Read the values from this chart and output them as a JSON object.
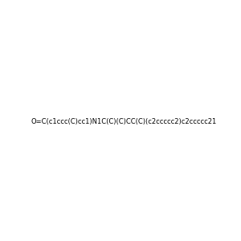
{
  "smiles": "O=C(c1ccc(C)cc1)N1C(C)(C)CC(C)(c2ccccc2)c2ccccc21",
  "background_color": "#e8e8e8",
  "bond_color": "#000000",
  "atom_colors": {
    "N": "#0000ff",
    "O": "#ff0000"
  },
  "figsize": [
    3.0,
    3.0
  ],
  "dpi": 100
}
